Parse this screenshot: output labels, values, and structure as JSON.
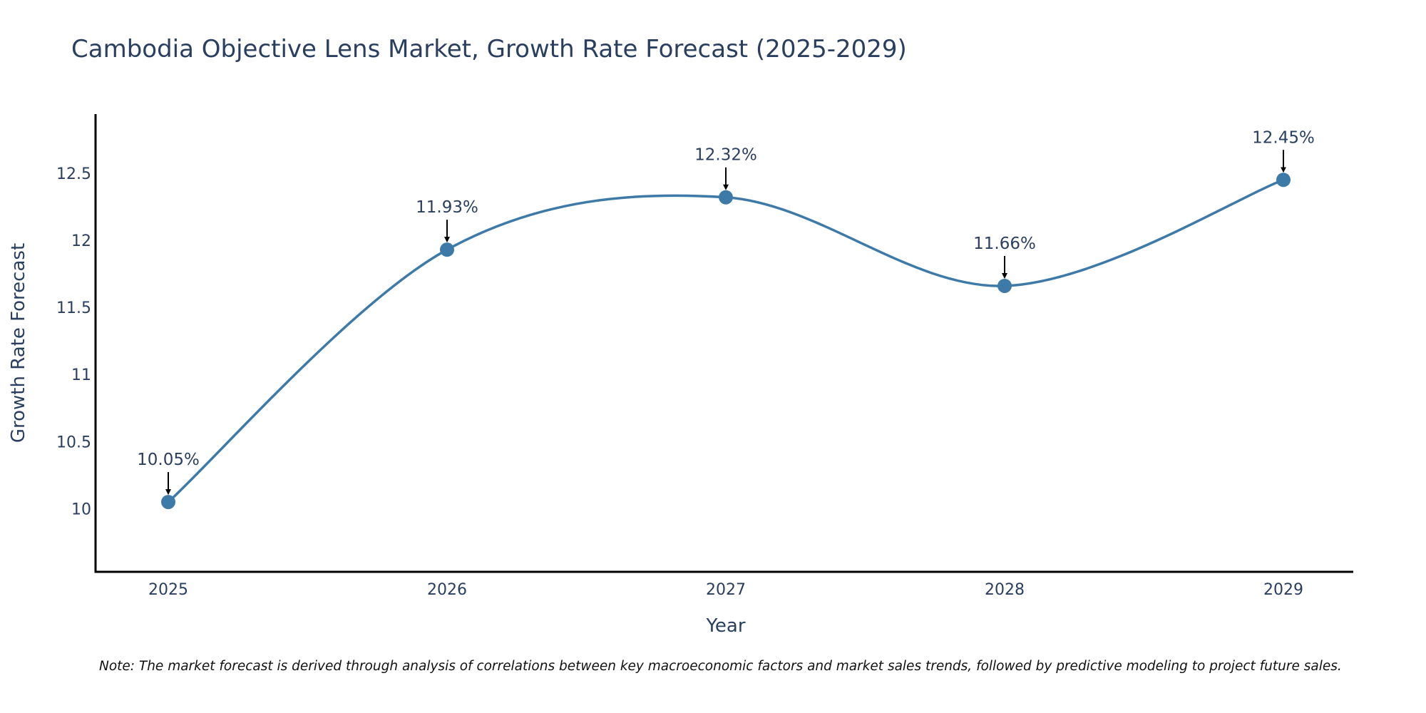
{
  "chart_data": {
    "type": "line",
    "title": "Cambodia Objective Lens Market, Growth Rate Forecast (2025-2029)",
    "xlabel": "Year",
    "ylabel": "Growth Rate Forecast",
    "categories": [
      "2025",
      "2026",
      "2027",
      "2028",
      "2029"
    ],
    "series": [
      {
        "name": "Growth Rate Forecast",
        "values": [
          10.05,
          11.93,
          12.32,
          11.66,
          12.45
        ],
        "labels": [
          "10.05%",
          "11.93%",
          "12.32%",
          "11.66%",
          "12.45%"
        ],
        "color": "#3d7aa8"
      }
    ],
    "y_ticks": [
      10,
      10.5,
      11,
      11.5,
      12,
      12.5
    ],
    "y_tick_labels": [
      "10",
      "10.5",
      "11",
      "11.5",
      "12",
      "12.5"
    ],
    "ylim": [
      9.53,
      12.94
    ],
    "grid": false,
    "line_shape": "spline",
    "note": "Note: The market forecast is derived through analysis of correlations between key macroeconomic factors and market sales trends, followed by predictive modeling to project future sales."
  }
}
